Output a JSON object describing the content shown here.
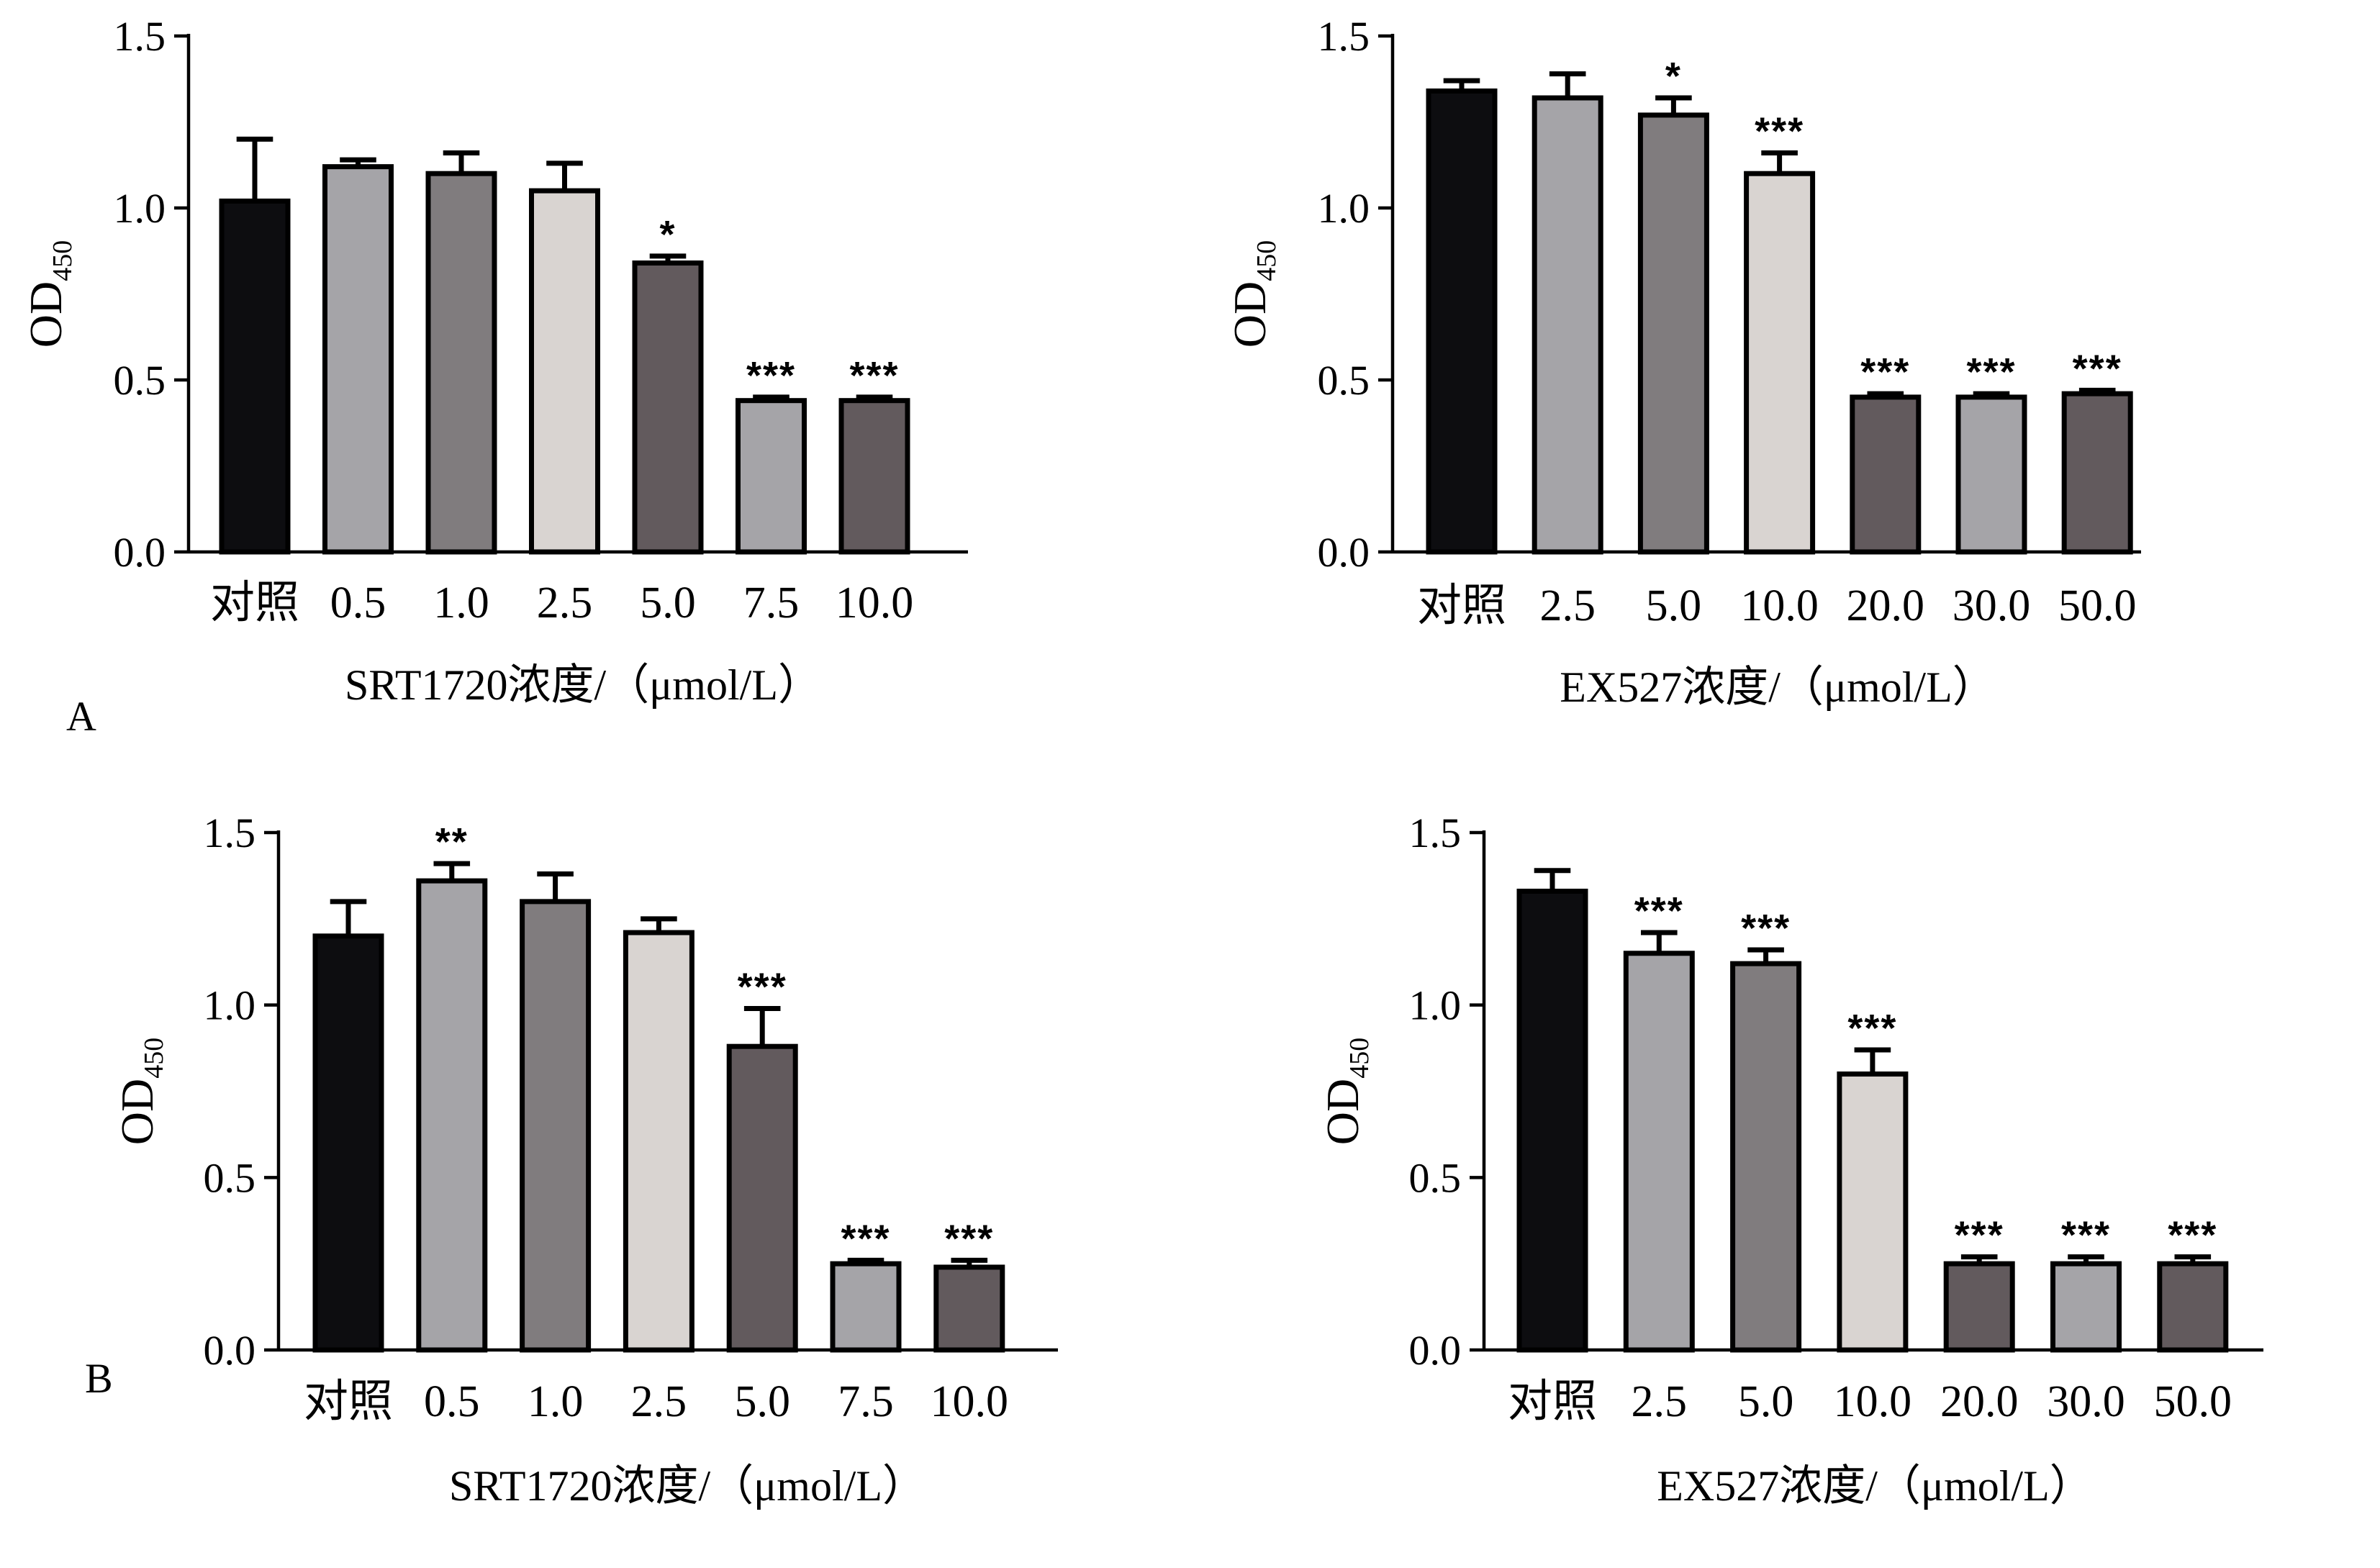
{
  "panel_labels": [
    "A",
    "B"
  ],
  "chart_data": [
    {
      "type": "bar",
      "panel": "A",
      "ylabel": "OD",
      "ylabel_subscript": "450",
      "xlabel": "SRT1720浓度/（μmol/L）",
      "ylim": [
        0,
        1.5
      ],
      "yticks": [
        "0.0",
        "0.5",
        "1.0",
        "1.5"
      ],
      "categories": [
        "对照",
        "0.5",
        "1.0",
        "2.5",
        "5.0",
        "7.5",
        "10.0"
      ],
      "values": [
        1.02,
        1.12,
        1.1,
        1.05,
        0.84,
        0.44,
        0.44
      ],
      "errors": [
        0.18,
        0.02,
        0.06,
        0.08,
        0.02,
        0.01,
        0.01
      ],
      "significance": [
        "",
        "",
        "",
        "",
        "*",
        "***",
        "***"
      ],
      "bar_colors": [
        "#0d0d10",
        "#a5a4a8",
        "#807c7e",
        "#d9d4d1",
        "#625a5d",
        "#a5a4a8",
        "#625a5d"
      ]
    },
    {
      "type": "bar",
      "panel": "A",
      "ylabel": "OD",
      "ylabel_subscript": "450",
      "xlabel": "EX527浓度/（μmol/L）",
      "ylim": [
        0,
        1.5
      ],
      "yticks": [
        "0.0",
        "0.5",
        "1.0",
        "1.5"
      ],
      "categories": [
        "对照",
        "2.5",
        "5.0",
        "10.0",
        "20.0",
        "30.0",
        "50.0"
      ],
      "values": [
        1.34,
        1.32,
        1.27,
        1.1,
        0.45,
        0.45,
        0.46
      ],
      "errors": [
        0.03,
        0.07,
        0.05,
        0.06,
        0.01,
        0.01,
        0.01
      ],
      "significance": [
        "",
        "",
        "*",
        "***",
        "***",
        "***",
        "***"
      ],
      "bar_colors": [
        "#0d0d10",
        "#a5a4a8",
        "#807c7e",
        "#d9d4d1",
        "#625a5d",
        "#a5a4a8",
        "#625a5d"
      ]
    },
    {
      "type": "bar",
      "panel": "B",
      "ylabel": "OD",
      "ylabel_subscript": "450",
      "xlabel": "SRT1720浓度/（μmol/L）",
      "ylim": [
        0,
        1.5
      ],
      "yticks": [
        "0.0",
        "0.5",
        "1.0",
        "1.5"
      ],
      "categories": [
        "对照",
        "0.5",
        "1.0",
        "2.5",
        "5.0",
        "7.5",
        "10.0"
      ],
      "values": [
        1.2,
        1.36,
        1.3,
        1.21,
        0.88,
        0.25,
        0.24
      ],
      "errors": [
        0.1,
        0.05,
        0.08,
        0.04,
        0.11,
        0.01,
        0.02
      ],
      "significance": [
        "",
        "**",
        "",
        "",
        "***",
        "***",
        "***"
      ],
      "bar_colors": [
        "#0d0d10",
        "#a5a4a8",
        "#807c7e",
        "#d9d4d1",
        "#625a5d",
        "#a5a4a8",
        "#625a5d"
      ]
    },
    {
      "type": "bar",
      "panel": "B",
      "ylabel": "OD",
      "ylabel_subscript": "450",
      "xlabel": "EX527浓度/（μmol/L）",
      "ylim": [
        0,
        1.5
      ],
      "yticks": [
        "0.0",
        "0.5",
        "1.0",
        "1.5"
      ],
      "categories": [
        "对照",
        "2.5",
        "5.0",
        "10.0",
        "20.0",
        "30.0",
        "50.0"
      ],
      "values": [
        1.33,
        1.15,
        1.12,
        0.8,
        0.25,
        0.25,
        0.25
      ],
      "errors": [
        0.06,
        0.06,
        0.04,
        0.07,
        0.02,
        0.02,
        0.02
      ],
      "significance": [
        "",
        "***",
        "***",
        "***",
        "***",
        "***",
        "***"
      ],
      "bar_colors": [
        "#0d0d10",
        "#a5a4a8",
        "#807c7e",
        "#d9d4d1",
        "#625a5d",
        "#a5a4a8",
        "#625a5d"
      ]
    }
  ]
}
